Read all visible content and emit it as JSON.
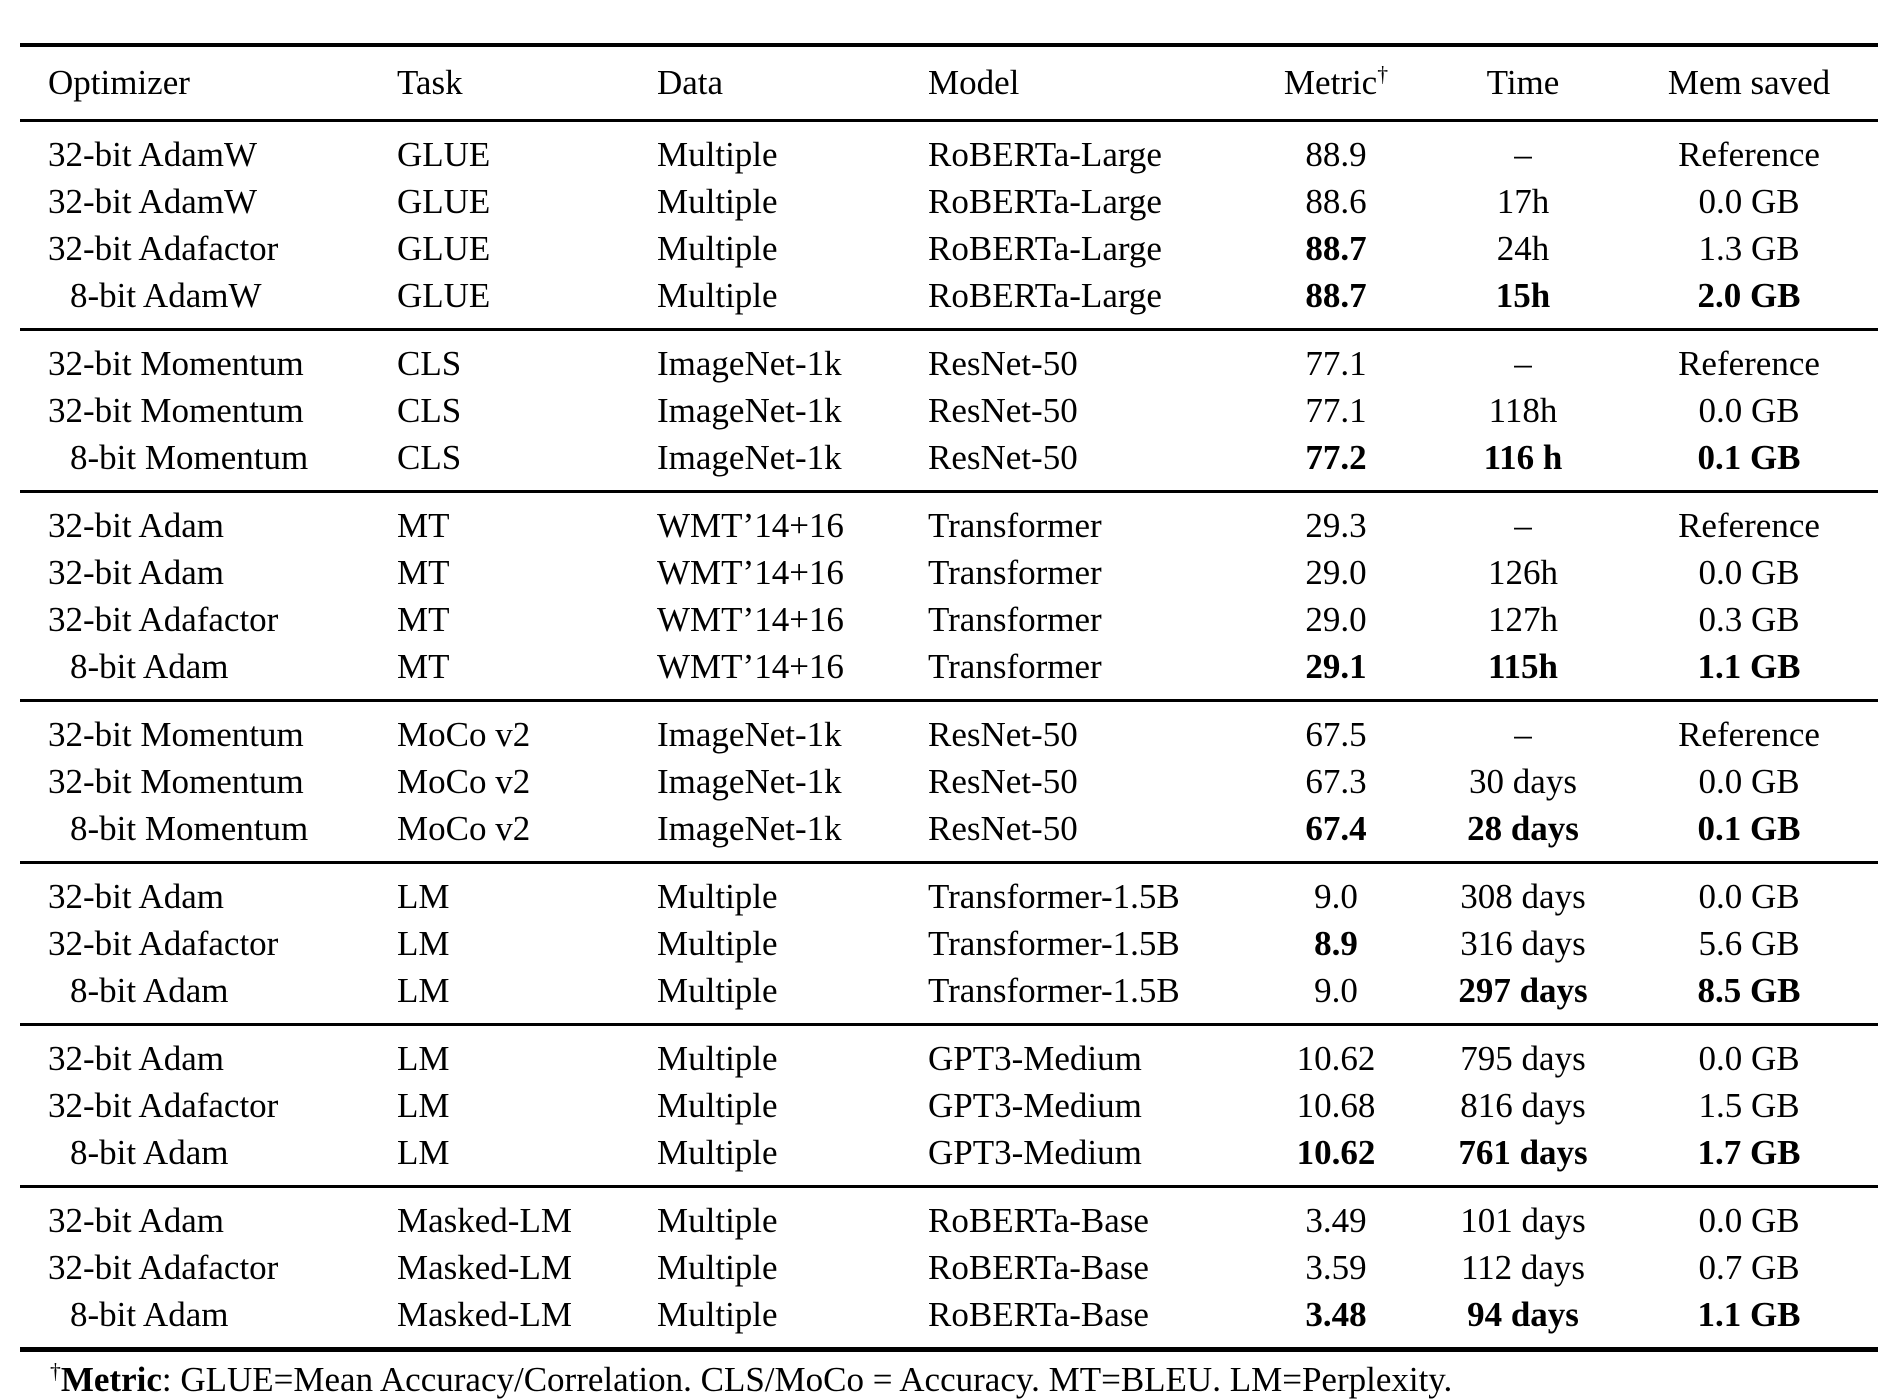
{
  "colors": {
    "background": "#ffffff",
    "text": "#000000",
    "rule": "#000000"
  },
  "header": {
    "columns": [
      "Optimizer",
      "Task",
      "Data",
      "Model",
      "Metric",
      "Time",
      "Mem saved"
    ],
    "metric_dagger": "†"
  },
  "groups": [
    {
      "rows": [
        {
          "cells": [
            "32-bit AdamW",
            "GLUE",
            "Multiple",
            "RoBERTa-Large",
            "88.9",
            "–",
            "Reference"
          ],
          "bold": []
        },
        {
          "cells": [
            "32-bit AdamW",
            "GLUE",
            "Multiple",
            "RoBERTa-Large",
            "88.6",
            "17h",
            "0.0 GB"
          ],
          "bold": []
        },
        {
          "cells": [
            "32-bit Adafactor",
            "GLUE",
            "Multiple",
            "RoBERTa-Large",
            "88.7",
            "24h",
            "1.3 GB"
          ],
          "bold": [
            4
          ]
        },
        {
          "cells": [
            "8-bit AdamW",
            "GLUE",
            "Multiple",
            "RoBERTa-Large",
            "88.7",
            "15h",
            "2.0 GB"
          ],
          "bold": [
            4,
            5,
            6
          ]
        }
      ]
    },
    {
      "rows": [
        {
          "cells": [
            "32-bit Momentum",
            "CLS",
            "ImageNet-1k",
            "ResNet-50",
            "77.1",
            "–",
            "Reference"
          ],
          "bold": []
        },
        {
          "cells": [
            "32-bit Momentum",
            "CLS",
            "ImageNet-1k",
            "ResNet-50",
            "77.1",
            "118h",
            "0.0 GB"
          ],
          "bold": []
        },
        {
          "cells": [
            "8-bit Momentum",
            "CLS",
            "ImageNet-1k",
            "ResNet-50",
            "77.2",
            "116 h",
            "0.1 GB"
          ],
          "bold": [
            4,
            5,
            6
          ]
        }
      ]
    },
    {
      "rows": [
        {
          "cells": [
            "32-bit Adam",
            "MT",
            "WMT’14+16",
            "Transformer",
            "29.3",
            "–",
            "Reference"
          ],
          "bold": []
        },
        {
          "cells": [
            "32-bit Adam",
            "MT",
            "WMT’14+16",
            "Transformer",
            "29.0",
            "126h",
            "0.0 GB"
          ],
          "bold": []
        },
        {
          "cells": [
            "32-bit Adafactor",
            "MT",
            "WMT’14+16",
            "Transformer",
            "29.0",
            "127h",
            "0.3 GB"
          ],
          "bold": []
        },
        {
          "cells": [
            "8-bit Adam",
            "MT",
            "WMT’14+16",
            "Transformer",
            "29.1",
            "115h",
            "1.1 GB"
          ],
          "bold": [
            4,
            5,
            6
          ]
        }
      ]
    },
    {
      "rows": [
        {
          "cells": [
            "32-bit Momentum",
            "MoCo v2",
            "ImageNet-1k",
            "ResNet-50",
            "67.5",
            "–",
            "Reference"
          ],
          "bold": []
        },
        {
          "cells": [
            "32-bit Momentum",
            "MoCo v2",
            "ImageNet-1k",
            "ResNet-50",
            "67.3",
            "30 days",
            "0.0 GB"
          ],
          "bold": []
        },
        {
          "cells": [
            "8-bit Momentum",
            "MoCo v2",
            "ImageNet-1k",
            "ResNet-50",
            "67.4",
            "28 days",
            "0.1 GB"
          ],
          "bold": [
            4,
            5,
            6
          ]
        }
      ]
    },
    {
      "rows": [
        {
          "cells": [
            "32-bit Adam",
            "LM",
            "Multiple",
            "Transformer-1.5B",
            "9.0",
            "308 days",
            "0.0 GB"
          ],
          "bold": []
        },
        {
          "cells": [
            "32-bit Adafactor",
            "LM",
            "Multiple",
            "Transformer-1.5B",
            "8.9",
            "316 days",
            "5.6 GB"
          ],
          "bold": [
            4
          ]
        },
        {
          "cells": [
            "8-bit Adam",
            "LM",
            "Multiple",
            "Transformer-1.5B",
            "9.0",
            "297 days",
            "8.5 GB"
          ],
          "bold": [
            5,
            6
          ]
        }
      ]
    },
    {
      "rows": [
        {
          "cells": [
            "32-bit Adam",
            "LM",
            "Multiple",
            "GPT3-Medium",
            "10.62",
            "795 days",
            "0.0 GB"
          ],
          "bold": []
        },
        {
          "cells": [
            "32-bit Adafactor",
            "LM",
            "Multiple",
            "GPT3-Medium",
            "10.68",
            "816 days",
            "1.5 GB"
          ],
          "bold": []
        },
        {
          "cells": [
            "8-bit Adam",
            "LM",
            "Multiple",
            "GPT3-Medium",
            "10.62",
            "761 days",
            "1.7 GB"
          ],
          "bold": [
            4,
            5,
            6
          ]
        }
      ]
    },
    {
      "rows": [
        {
          "cells": [
            "32-bit Adam",
            "Masked-LM",
            "Multiple",
            "RoBERTa-Base",
            "3.49",
            "101 days",
            "0.0 GB"
          ],
          "bold": []
        },
        {
          "cells": [
            "32-bit Adafactor",
            "Masked-LM",
            "Multiple",
            "RoBERTa-Base",
            "3.59",
            "112 days",
            "0.7 GB"
          ],
          "bold": []
        },
        {
          "cells": [
            "8-bit Adam",
            "Masked-LM",
            "Multiple",
            "RoBERTa-Base",
            "3.48",
            "94 days",
            "1.1 GB"
          ],
          "bold": [
            4,
            5,
            6
          ]
        }
      ]
    }
  ],
  "footnote": {
    "dagger": "†",
    "label": "Metric",
    "text": ": GLUE=Mean Accuracy/Correlation. CLS/MoCo = Accuracy. MT=BLEU. LM=Perplexity."
  }
}
